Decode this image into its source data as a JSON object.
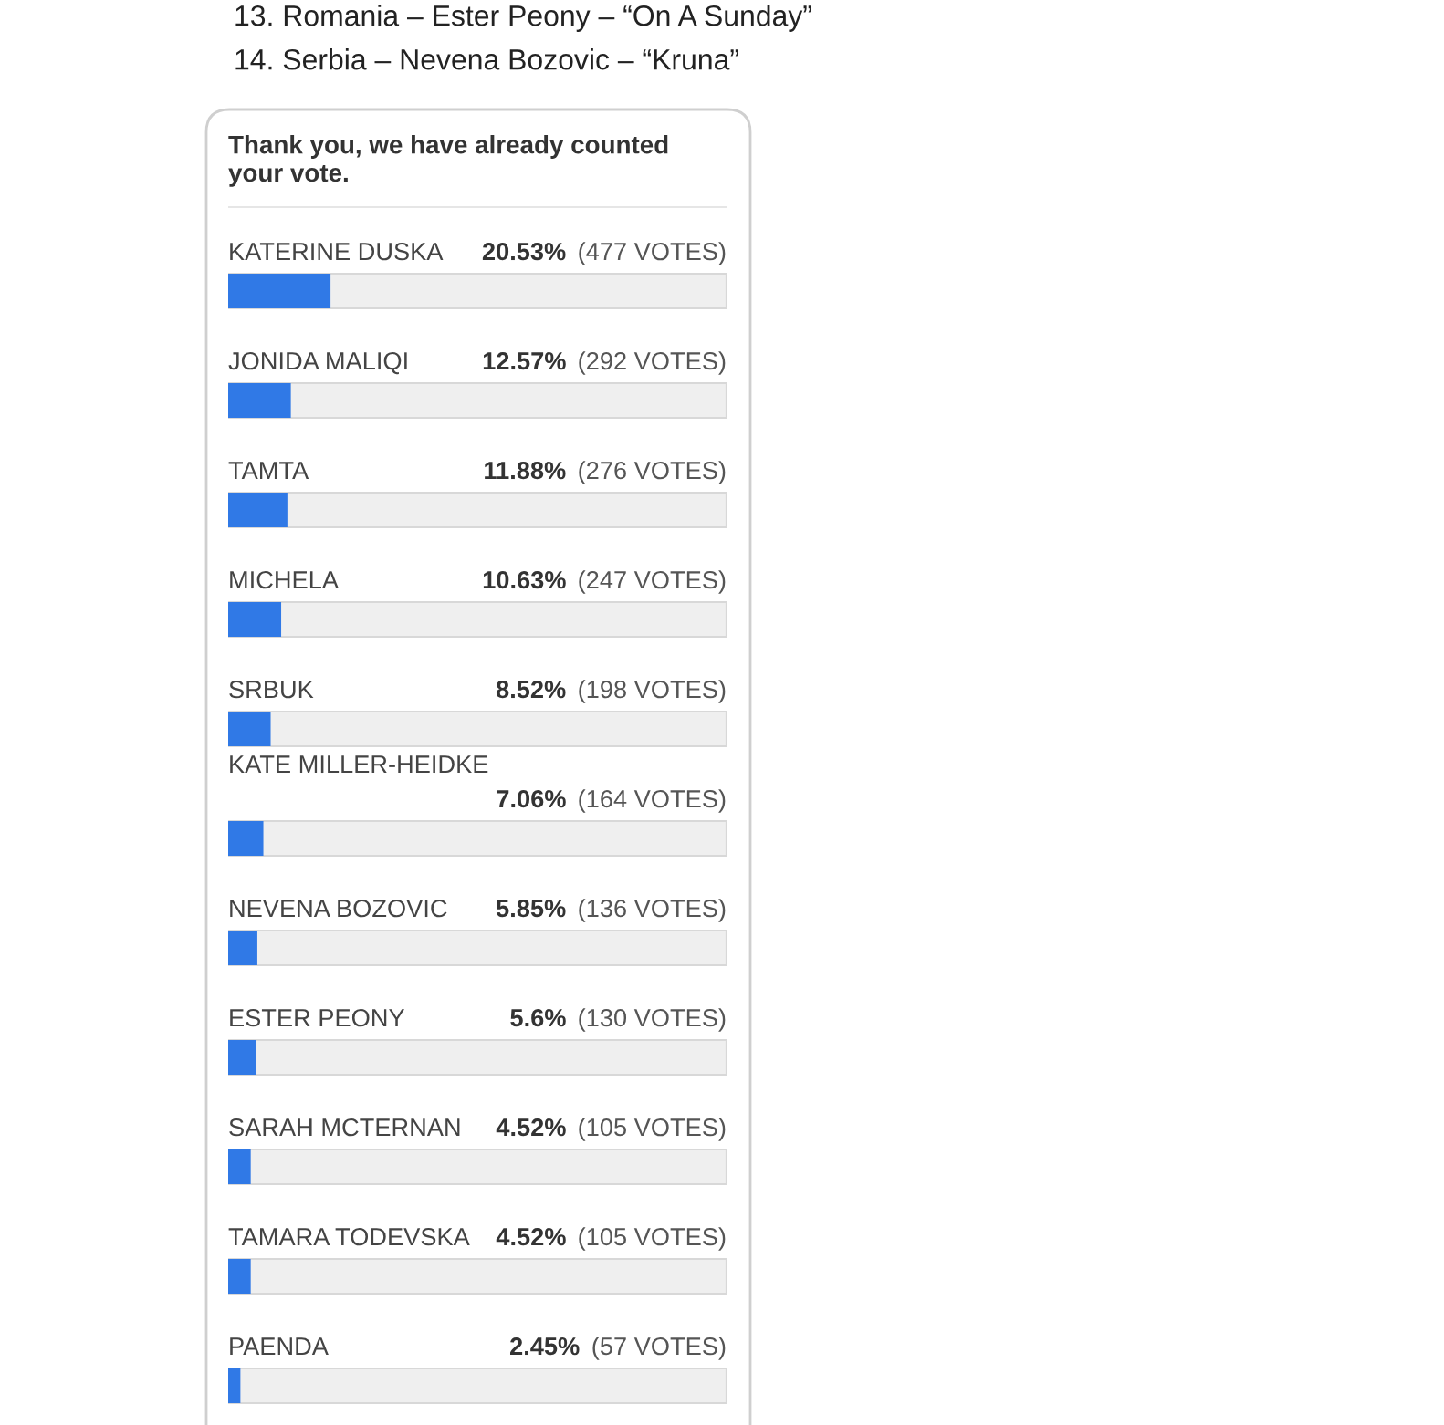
{
  "chart_data": {
    "type": "bar",
    "orientation": "horizontal",
    "title": "Thank you, we have already counted your vote.",
    "categories": [
      "KATERINE DUSKA",
      "JONIDA MALIQI",
      "TAMTA",
      "MICHELA",
      "SRBUK",
      "KATE MILLER-HEIDKE",
      "NEVENA BOZOVIC",
      "ESTER PEONY",
      "SARAH MCTERNAN",
      "TAMARA TODEVSKA",
      "PAENDA"
    ],
    "values": [
      20.53,
      12.57,
      11.88,
      10.63,
      8.52,
      7.06,
      5.85,
      5.6,
      4.52,
      4.52,
      2.45
    ],
    "value_labels": [
      "20.53% (477 VOTES)",
      "12.57% (292 VOTES)",
      "11.88% (276 VOTES)",
      "10.63% (247 VOTES)",
      "8.52% (198 VOTES)",
      "7.06% (164 VOTES)",
      "5.85% (136 VOTES)",
      "5.6% (130 VOTES)",
      "4.52% (105 VOTES)",
      "4.52% (105 VOTES)",
      "2.45% (57 VOTES)"
    ],
    "color": "#3079e6",
    "xlim": [
      0,
      100
    ],
    "tick_labels": false,
    "annotations": [
      "13. Romania – Ester Peony – “On A Sunday”",
      "14. Serbia – Nevena Bozovic – “Kruna”"
    ]
  }
}
